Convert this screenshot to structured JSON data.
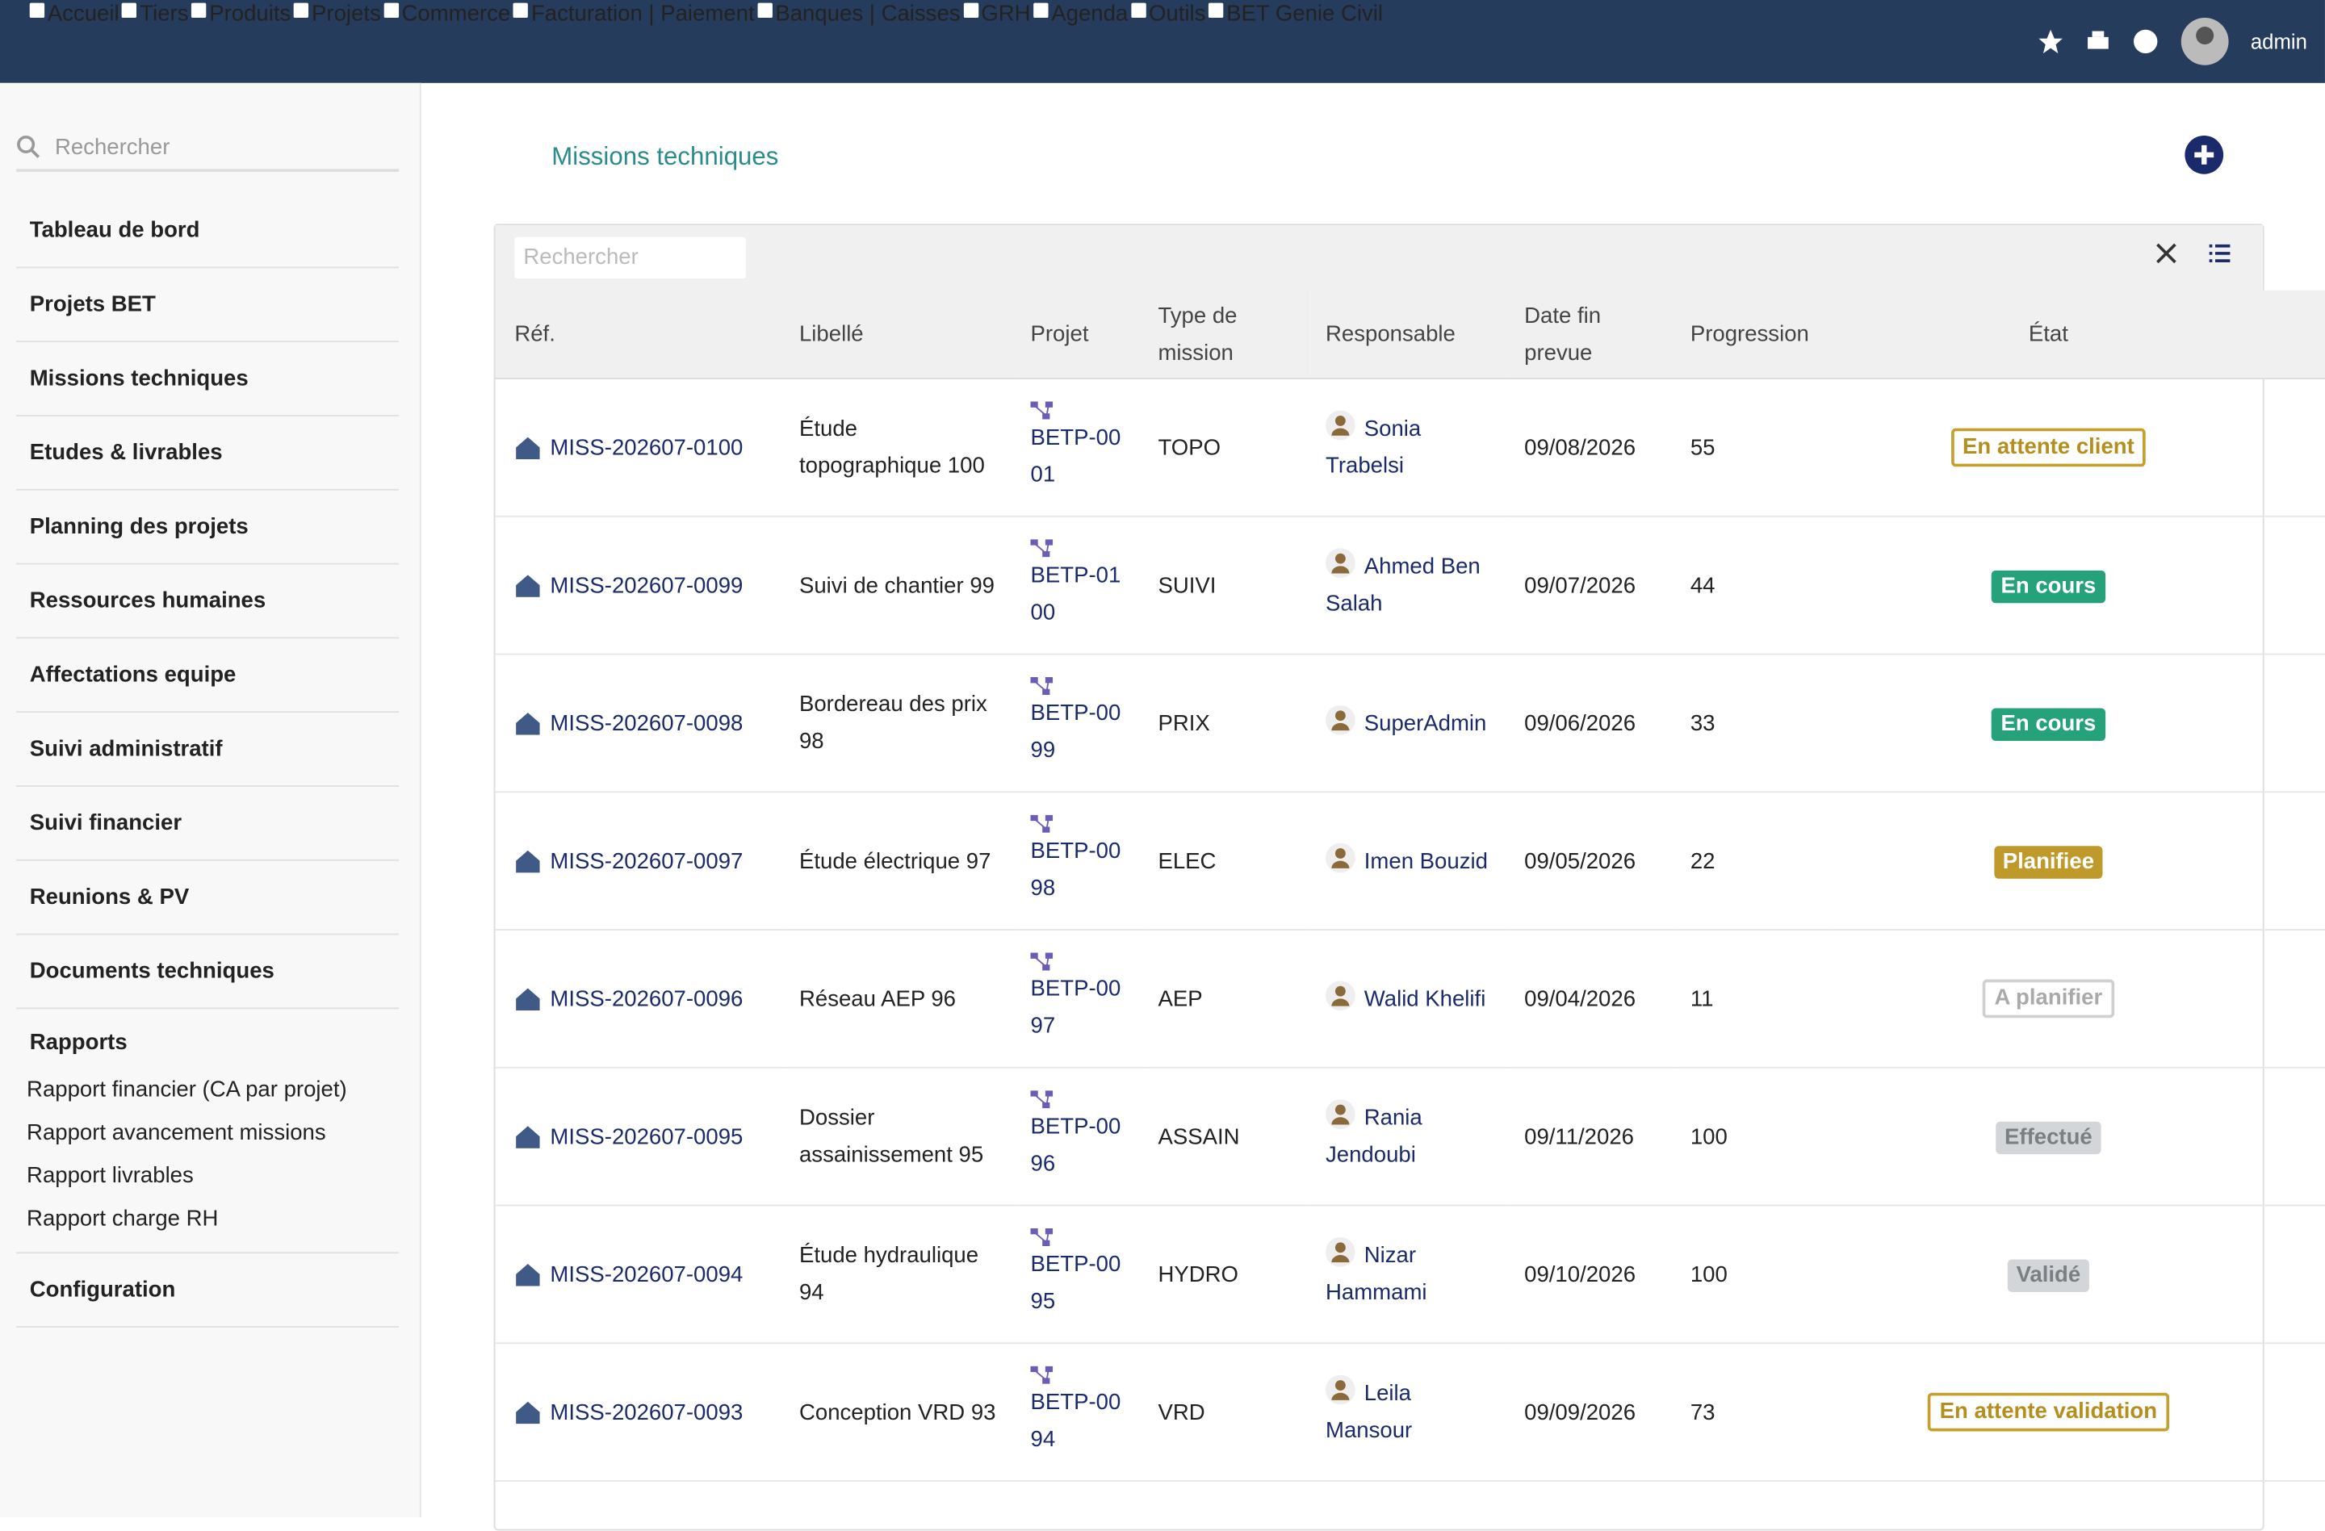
{
  "topbar": {
    "menu": [
      "Accueil",
      "Tiers",
      "Produits",
      "Projets",
      "Commerce",
      "Facturation | Paiement",
      "Banques | Caisses",
      "GRH",
      "Agenda",
      "Outils",
      "BET Genie Civil"
    ],
    "user": "admin"
  },
  "sidebar": {
    "search_placeholder": "Rechercher",
    "menu": [
      "Tableau de bord",
      "Projets BET",
      "Missions techniques",
      "Etudes & livrables",
      "Planning des projets",
      "Ressources humaines",
      "Affectations equipe",
      "Suivi administratif",
      "Suivi financier",
      "Reunions & PV",
      "Documents techniques"
    ],
    "reports_title": "Rapports",
    "reports": [
      "Rapport financier (CA par projet)",
      "Rapport avancement missions",
      "Rapport livrables",
      "Rapport charge RH"
    ],
    "config": "Configuration"
  },
  "page": {
    "title": "Missions techniques"
  },
  "table": {
    "search_placeholder": "Rechercher",
    "headers": [
      "Réf.",
      "Libellé",
      "Projet",
      "Type de mission",
      "Responsable",
      "Date fin prevue",
      "Progression",
      "État"
    ],
    "rows": [
      {
        "ref": "MISS-202607-0100",
        "libelle": "Étude topographique 100",
        "projet": "BETP-0001",
        "type": "TOPO",
        "responsable": "Sonia Trabelsi",
        "date": "09/08/2026",
        "progression": 55,
        "etat": "En attente client",
        "etat_style": "outline-gold"
      },
      {
        "ref": "MISS-202607-0099",
        "libelle": "Suivi de chantier 99",
        "projet": "BETP-0100",
        "type": "SUIVI",
        "responsable": "Ahmed Ben Salah",
        "date": "09/07/2026",
        "progression": 44,
        "etat": "En cours",
        "etat_style": "green"
      },
      {
        "ref": "MISS-202607-0098",
        "libelle": "Bordereau des prix 98",
        "projet": "BETP-0099",
        "type": "PRIX",
        "responsable": "SuperAdmin",
        "date": "09/06/2026",
        "progression": 33,
        "etat": "En cours",
        "etat_style": "green"
      },
      {
        "ref": "MISS-202607-0097",
        "libelle": "Étude électrique 97",
        "projet": "BETP-0098",
        "type": "ELEC",
        "responsable": "Imen Bouzid",
        "date": "09/05/2026",
        "progression": 22,
        "etat": "Planifiee",
        "etat_style": "gold"
      },
      {
        "ref": "MISS-202607-0096",
        "libelle": "Réseau AEP 96",
        "projet": "BETP-0097",
        "type": "AEP",
        "responsable": "Walid Khelifi",
        "date": "09/04/2026",
        "progression": 11,
        "etat": "A planifier",
        "etat_style": "outline-gray"
      },
      {
        "ref": "MISS-202607-0095",
        "libelle": "Dossier assainissement 95",
        "projet": "BETP-0096",
        "type": "ASSAIN",
        "responsable": "Rania Jendoubi",
        "date": "09/11/2026",
        "progression": 100,
        "etat": "Effectué",
        "etat_style": "gray"
      },
      {
        "ref": "MISS-202607-0094",
        "libelle": "Étude hydraulique 94",
        "projet": "BETP-0095",
        "type": "HYDRO",
        "responsable": "Nizar Hammami",
        "date": "09/10/2026",
        "progression": 100,
        "etat": "Validé",
        "etat_style": "gray"
      },
      {
        "ref": "MISS-202607-0093",
        "libelle": "Conception VRD 93",
        "projet": "BETP-0094",
        "type": "VRD",
        "responsable": "Leila Mansour",
        "date": "09/09/2026",
        "progression": 73,
        "etat": "En attente validation",
        "etat_style": "outline-gold"
      }
    ]
  }
}
